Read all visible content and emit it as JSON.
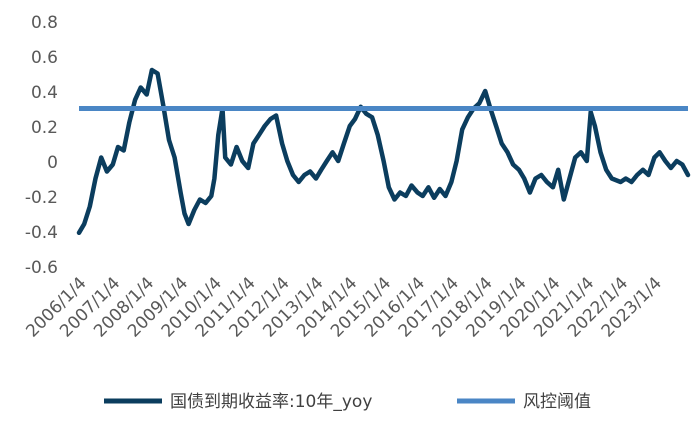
{
  "chart_data": {
    "type": "line",
    "title": "",
    "xlabel": "",
    "ylabel": "",
    "ylim": [
      -0.6,
      0.8
    ],
    "yticks": [
      "0.8",
      "0.6",
      "0.4",
      "0.2",
      "0",
      "-0.2",
      "-0.4",
      "-0.6"
    ],
    "xticks": [
      "2006/1/4",
      "2007/1/4",
      "2008/1/4",
      "2009/1/4",
      "2010/1/4",
      "2011/1/4",
      "2012/1/4",
      "2013/1/4",
      "2014/1/4",
      "2015/1/4",
      "2016/1/4",
      "2017/1/4",
      "2018/1/4",
      "2019/1/4",
      "2020/1/4",
      "2021/1/4",
      "2022/1/4",
      "2023/1/4"
    ],
    "x_range": [
      "2006/1/4",
      "2024/1/1"
    ],
    "legend_position": "bottom",
    "grid": false,
    "series": [
      {
        "name": "国债到期收益率:10年_yoy",
        "color": "#0b3d5e",
        "points": [
          [
            "2006/1/4",
            -0.41
          ],
          [
            "2006/3/1",
            -0.36
          ],
          [
            "2006/5/1",
            -0.26
          ],
          [
            "2006/7/1",
            -0.1
          ],
          [
            "2006/9/1",
            0.02
          ],
          [
            "2006/11/1",
            -0.06
          ],
          [
            "2007/1/4",
            -0.02
          ],
          [
            "2007/3/1",
            0.08
          ],
          [
            "2007/5/1",
            0.06
          ],
          [
            "2007/7/1",
            0.22
          ],
          [
            "2007/9/1",
            0.35
          ],
          [
            "2007/11/1",
            0.42
          ],
          [
            "2008/1/4",
            0.38
          ],
          [
            "2008/3/1",
            0.52
          ],
          [
            "2008/5/1",
            0.5
          ],
          [
            "2008/7/1",
            0.32
          ],
          [
            "2008/9/1",
            0.12
          ],
          [
            "2008/11/1",
            0.02
          ],
          [
            "2009/1/4",
            -0.18
          ],
          [
            "2009/2/15",
            -0.3
          ],
          [
            "2009/4/1",
            -0.36
          ],
          [
            "2009/6/1",
            -0.28
          ],
          [
            "2009/8/1",
            -0.22
          ],
          [
            "2009/10/1",
            -0.24
          ],
          [
            "2009/12/1",
            -0.2
          ],
          [
            "2010/1/4",
            -0.1
          ],
          [
            "2010/2/15",
            0.15
          ],
          [
            "2010/4/1",
            0.3
          ],
          [
            "2010/5/1",
            0.02
          ],
          [
            "2010/7/1",
            -0.02
          ],
          [
            "2010/9/1",
            0.08
          ],
          [
            "2010/11/1",
            0.0
          ],
          [
            "2011/1/4",
            -0.04
          ],
          [
            "2011/3/1",
            0.1
          ],
          [
            "2011/5/1",
            0.15
          ],
          [
            "2011/7/1",
            0.2
          ],
          [
            "2011/9/1",
            0.24
          ],
          [
            "2011/11/1",
            0.26
          ],
          [
            "2012/1/4",
            0.1
          ],
          [
            "2012/3/1",
            0.0
          ],
          [
            "2012/5/1",
            -0.08
          ],
          [
            "2012/7/1",
            -0.12
          ],
          [
            "2012/9/1",
            -0.08
          ],
          [
            "2012/11/1",
            -0.06
          ],
          [
            "2013/1/4",
            -0.1
          ],
          [
            "2013/3/1",
            -0.05
          ],
          [
            "2013/5/1",
            0.0
          ],
          [
            "2013/7/1",
            0.05
          ],
          [
            "2013/9/1",
            0.0
          ],
          [
            "2013/11/1",
            0.1
          ],
          [
            "2014/1/4",
            0.2
          ],
          [
            "2014/3/1",
            0.24
          ],
          [
            "2014/5/1",
            0.31
          ],
          [
            "2014/7/1",
            0.27
          ],
          [
            "2014/9/1",
            0.25
          ],
          [
            "2014/11/1",
            0.15
          ],
          [
            "2015/1/4",
            0.0
          ],
          [
            "2015/3/1",
            -0.15
          ],
          [
            "2015/5/1",
            -0.22
          ],
          [
            "2015/7/1",
            -0.18
          ],
          [
            "2015/9/1",
            -0.2
          ],
          [
            "2015/11/1",
            -0.14
          ],
          [
            "2016/1/4",
            -0.18
          ],
          [
            "2016/3/1",
            -0.2
          ],
          [
            "2016/5/1",
            -0.15
          ],
          [
            "2016/7/1",
            -0.21
          ],
          [
            "2016/9/1",
            -0.16
          ],
          [
            "2016/11/1",
            -0.2
          ],
          [
            "2017/1/4",
            -0.12
          ],
          [
            "2017/3/1",
            0.0
          ],
          [
            "2017/5/1",
            0.18
          ],
          [
            "2017/7/1",
            0.25
          ],
          [
            "2017/9/1",
            0.3
          ],
          [
            "2017/11/1",
            0.33
          ],
          [
            "2018/1/4",
            0.4
          ],
          [
            "2018/3/1",
            0.3
          ],
          [
            "2018/5/1",
            0.2
          ],
          [
            "2018/7/1",
            0.1
          ],
          [
            "2018/9/1",
            0.05
          ],
          [
            "2018/11/1",
            -0.02
          ],
          [
            "2019/1/4",
            -0.05
          ],
          [
            "2019/3/1",
            -0.1
          ],
          [
            "2019/5/1",
            -0.18
          ],
          [
            "2019/7/1",
            -0.1
          ],
          [
            "2019/9/1",
            -0.08
          ],
          [
            "2019/11/1",
            -0.12
          ],
          [
            "2020/1/4",
            -0.15
          ],
          [
            "2020/3/1",
            -0.05
          ],
          [
            "2020/5/1",
            -0.22
          ],
          [
            "2020/7/1",
            -0.1
          ],
          [
            "2020/9/1",
            0.02
          ],
          [
            "2020/11/1",
            0.05
          ],
          [
            "2021/1/4",
            0.0
          ],
          [
            "2021/2/15",
            0.28
          ],
          [
            "2021/4/1",
            0.2
          ],
          [
            "2021/6/1",
            0.05
          ],
          [
            "2021/8/1",
            -0.05
          ],
          [
            "2021/10/1",
            -0.1
          ],
          [
            "2022/1/4",
            -0.12
          ],
          [
            "2022/3/1",
            -0.1
          ],
          [
            "2022/5/1",
            -0.12
          ],
          [
            "2022/7/1",
            -0.08
          ],
          [
            "2022/9/1",
            -0.05
          ],
          [
            "2022/11/1",
            -0.08
          ],
          [
            "2023/1/4",
            0.02
          ],
          [
            "2023/3/1",
            0.05
          ],
          [
            "2023/5/1",
            0.0
          ],
          [
            "2023/7/1",
            -0.04
          ],
          [
            "2023/9/1",
            0.0
          ],
          [
            "2023/11/1",
            -0.02
          ],
          [
            "2024/1/1",
            -0.08
          ]
        ]
      },
      {
        "name": "风控阈值",
        "color": "#4a86c5",
        "points": [
          [
            "2006/1/4",
            0.3
          ],
          [
            "2024/1/1",
            0.3
          ]
        ]
      }
    ]
  }
}
